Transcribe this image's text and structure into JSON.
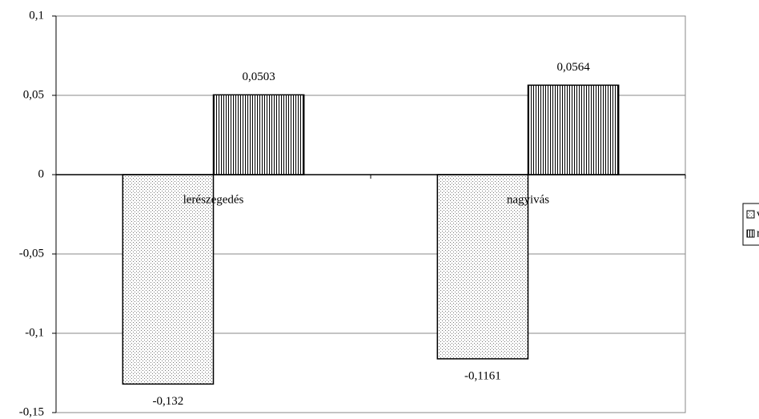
{
  "chart_data": {
    "type": "bar",
    "categories": [
      "lerészegedés",
      "nagyivás"
    ],
    "series": [
      {
        "name": "volt",
        "pattern": "dots",
        "values": [
          -0.132,
          -0.1161
        ],
        "value_labels": [
          "-0,132",
          "-0,1161"
        ]
      },
      {
        "name": "nem",
        "pattern": "vlines",
        "values": [
          0.0503,
          0.0564
        ],
        "value_labels": [
          "0,0503",
          "0,0564"
        ]
      }
    ],
    "ylim": [
      -0.15,
      0.1
    ],
    "yticks": [
      {
        "value": -0.15,
        "label": "-0,15"
      },
      {
        "value": -0.1,
        "label": "-0,1"
      },
      {
        "value": -0.05,
        "label": "-0,05"
      },
      0,
      {
        "value": 0.05,
        "label": "0,05"
      },
      {
        "value": 0.1,
        "label": "0,1"
      }
    ],
    "grid": true,
    "legend": "right"
  }
}
